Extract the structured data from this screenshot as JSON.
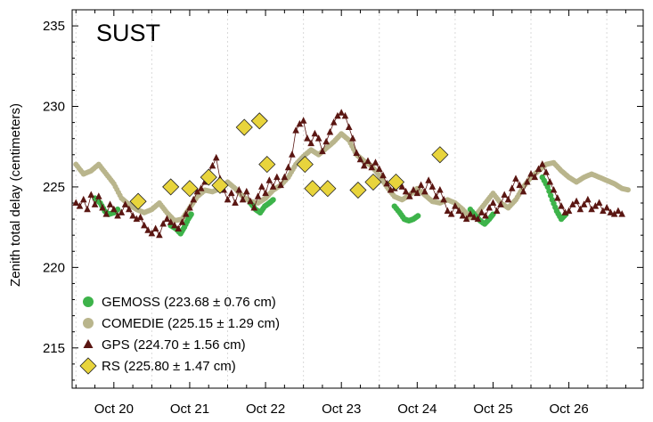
{
  "chart_data": {
    "type": "scatter",
    "station_label": "SUST",
    "ylabel": "Zenith total delay (centimeters)",
    "xlabel": "",
    "x_unit": "day",
    "ylim": [
      212.5,
      236.0
    ],
    "xlim": [
      19.45,
      26.98
    ],
    "y_ticks": [
      215,
      220,
      225,
      230,
      235
    ],
    "x_ticks": [
      {
        "x": 20,
        "label": "Oct 20"
      },
      {
        "x": 21,
        "label": "Oct 21"
      },
      {
        "x": 22,
        "label": "Oct 22"
      },
      {
        "x": 23,
        "label": "Oct 23"
      },
      {
        "x": 24,
        "label": "Oct 24"
      },
      {
        "x": 25,
        "label": "Oct 25"
      },
      {
        "x": 26,
        "label": "Oct 26"
      }
    ],
    "grid": "vertical dotted lines at day boundaries",
    "legend_position": "bottom-left",
    "series": [
      {
        "name": "GEMOSS",
        "legend": "GEMOSS (223.68 ± 0.76 cm)",
        "marker": "circle",
        "color": "#3db34a",
        "points": [
          [
            19.75,
            224.3
          ],
          [
            19.82,
            224.0
          ],
          [
            19.88,
            223.5
          ],
          [
            19.93,
            223.3
          ],
          [
            20.0,
            223.4
          ],
          [
            20.05,
            223.6
          ],
          [
            20.75,
            222.6
          ],
          [
            20.82,
            222.4
          ],
          [
            20.88,
            222.1
          ],
          [
            20.93,
            222.5
          ],
          [
            20.98,
            223.0
          ],
          [
            21.02,
            223.3
          ],
          [
            21.8,
            224.0
          ],
          [
            21.87,
            223.6
          ],
          [
            21.93,
            223.4
          ],
          [
            21.99,
            223.8
          ],
          [
            22.05,
            224.0
          ],
          [
            22.1,
            224.2
          ],
          [
            23.7,
            223.8
          ],
          [
            23.77,
            223.4
          ],
          [
            23.83,
            223.0
          ],
          [
            23.89,
            222.9
          ],
          [
            23.95,
            223.0
          ],
          [
            24.01,
            223.2
          ],
          [
            24.7,
            223.6
          ],
          [
            24.77,
            223.2
          ],
          [
            24.83,
            222.9
          ],
          [
            24.89,
            222.7
          ],
          [
            24.95,
            223.0
          ],
          [
            25.0,
            223.3
          ],
          [
            25.65,
            225.6
          ],
          [
            25.72,
            225.0
          ],
          [
            25.78,
            224.2
          ],
          [
            25.84,
            223.5
          ],
          [
            25.9,
            223.0
          ],
          [
            25.96,
            223.3
          ]
        ]
      },
      {
        "name": "COMEDIE",
        "legend": "COMEDIE (225.15 ± 1.29 cm)",
        "marker": "circle",
        "color": "#b9b58c",
        "points": [
          [
            19.5,
            226.4
          ],
          [
            19.6,
            225.8
          ],
          [
            19.7,
            226.0
          ],
          [
            19.8,
            226.4
          ],
          [
            19.9,
            225.8
          ],
          [
            20.0,
            225.2
          ],
          [
            20.1,
            224.3
          ],
          [
            20.2,
            223.9
          ],
          [
            20.3,
            223.6
          ],
          [
            20.4,
            223.4
          ],
          [
            20.5,
            223.6
          ],
          [
            20.6,
            224.0
          ],
          [
            20.7,
            223.4
          ],
          [
            20.8,
            222.9
          ],
          [
            20.9,
            223.0
          ],
          [
            21.0,
            223.7
          ],
          [
            21.1,
            224.4
          ],
          [
            21.2,
            224.8
          ],
          [
            21.3,
            224.7
          ],
          [
            21.4,
            224.9
          ],
          [
            21.5,
            225.3
          ],
          [
            21.6,
            224.9
          ],
          [
            21.7,
            224.4
          ],
          [
            21.8,
            224.1
          ],
          [
            21.9,
            224.0
          ],
          [
            22.0,
            224.3
          ],
          [
            22.1,
            224.8
          ],
          [
            22.2,
            225.1
          ],
          [
            22.3,
            225.6
          ],
          [
            22.4,
            226.4
          ],
          [
            22.5,
            226.9
          ],
          [
            22.6,
            227.3
          ],
          [
            22.7,
            227.0
          ],
          [
            22.8,
            227.4
          ],
          [
            22.9,
            227.8
          ],
          [
            23.0,
            228.3
          ],
          [
            23.1,
            227.9
          ],
          [
            23.2,
            227.0
          ],
          [
            23.3,
            226.6
          ],
          [
            23.4,
            226.3
          ],
          [
            23.5,
            225.7
          ],
          [
            23.6,
            225.0
          ],
          [
            23.7,
            224.4
          ],
          [
            23.8,
            224.2
          ],
          [
            23.9,
            224.5
          ],
          [
            24.0,
            224.9
          ],
          [
            24.1,
            224.5
          ],
          [
            24.2,
            224.1
          ],
          [
            24.3,
            224.0
          ],
          [
            24.4,
            224.2
          ],
          [
            24.5,
            224.0
          ],
          [
            24.6,
            223.6
          ],
          [
            24.7,
            223.1
          ],
          [
            24.8,
            223.4
          ],
          [
            24.9,
            224.0
          ],
          [
            25.0,
            224.6
          ],
          [
            25.1,
            224.0
          ],
          [
            25.2,
            223.7
          ],
          [
            25.3,
            224.2
          ],
          [
            25.4,
            225.0
          ],
          [
            25.5,
            225.6
          ],
          [
            25.6,
            226.0
          ],
          [
            25.7,
            226.4
          ],
          [
            25.8,
            226.5
          ],
          [
            25.9,
            226.0
          ],
          [
            26.0,
            225.6
          ],
          [
            26.1,
            225.3
          ],
          [
            26.2,
            225.6
          ],
          [
            26.3,
            225.8
          ],
          [
            26.4,
            225.6
          ],
          [
            26.5,
            225.4
          ],
          [
            26.6,
            225.2
          ],
          [
            26.7,
            224.9
          ],
          [
            26.8,
            224.8
          ]
        ]
      },
      {
        "name": "GPS",
        "legend": "GPS (224.70 ± 1.56 cm)",
        "marker": "triangle",
        "color": "#5a1612",
        "line": true,
        "points": [
          [
            19.5,
            224.0
          ],
          [
            19.55,
            223.8
          ],
          [
            19.6,
            224.2
          ],
          [
            19.65,
            223.6
          ],
          [
            19.7,
            224.5
          ],
          [
            19.75,
            223.9
          ],
          [
            19.8,
            224.4
          ],
          [
            19.85,
            223.7
          ],
          [
            19.9,
            223.3
          ],
          [
            19.95,
            223.9
          ],
          [
            20.0,
            223.6
          ],
          [
            20.05,
            223.2
          ],
          [
            20.1,
            223.4
          ],
          [
            20.15,
            223.9
          ],
          [
            20.2,
            223.6
          ],
          [
            20.25,
            223.2
          ],
          [
            20.3,
            223.0
          ],
          [
            20.35,
            223.1
          ],
          [
            20.4,
            222.6
          ],
          [
            20.45,
            222.3
          ],
          [
            20.5,
            222.1
          ],
          [
            20.55,
            222.4
          ],
          [
            20.6,
            222.0
          ],
          [
            20.65,
            222.7
          ],
          [
            20.7,
            223.0
          ],
          [
            20.75,
            222.8
          ],
          [
            20.8,
            222.6
          ],
          [
            20.85,
            222.4
          ],
          [
            20.9,
            222.8
          ],
          [
            20.95,
            223.3
          ],
          [
            21.0,
            223.7
          ],
          [
            21.05,
            224.2
          ],
          [
            21.1,
            224.7
          ],
          [
            21.15,
            224.9
          ],
          [
            21.2,
            225.3
          ],
          [
            21.25,
            225.9
          ],
          [
            21.3,
            226.3
          ],
          [
            21.35,
            226.8
          ],
          [
            21.4,
            225.5
          ],
          [
            21.45,
            224.8
          ],
          [
            21.5,
            224.2
          ],
          [
            21.55,
            224.6
          ],
          [
            21.6,
            224.0
          ],
          [
            21.65,
            224.8
          ],
          [
            21.7,
            224.2
          ],
          [
            21.75,
            224.7
          ],
          [
            21.8,
            224.1
          ],
          [
            21.85,
            223.7
          ],
          [
            21.9,
            224.4
          ],
          [
            21.95,
            225.0
          ],
          [
            22.0,
            224.6
          ],
          [
            22.05,
            225.4
          ],
          [
            22.1,
            225.0
          ],
          [
            22.15,
            225.6
          ],
          [
            22.2,
            225.1
          ],
          [
            22.25,
            225.6
          ],
          [
            22.3,
            226.2
          ],
          [
            22.35,
            227.0
          ],
          [
            22.4,
            228.5
          ],
          [
            22.45,
            228.9
          ],
          [
            22.5,
            229.1
          ],
          [
            22.55,
            228.0
          ],
          [
            22.6,
            227.7
          ],
          [
            22.65,
            228.3
          ],
          [
            22.7,
            228.0
          ],
          [
            22.75,
            227.2
          ],
          [
            22.8,
            227.8
          ],
          [
            22.85,
            228.4
          ],
          [
            22.9,
            229.0
          ],
          [
            22.95,
            229.4
          ],
          [
            23.0,
            229.6
          ],
          [
            23.05,
            229.4
          ],
          [
            23.1,
            228.7
          ],
          [
            23.15,
            228.0
          ],
          [
            23.2,
            227.1
          ],
          [
            23.25,
            226.7
          ],
          [
            23.3,
            226.3
          ],
          [
            23.35,
            226.6
          ],
          [
            23.4,
            226.2
          ],
          [
            23.45,
            226.5
          ],
          [
            23.5,
            226.1
          ],
          [
            23.55,
            225.7
          ],
          [
            23.6,
            225.2
          ],
          [
            23.65,
            224.8
          ],
          [
            23.7,
            224.9
          ],
          [
            23.75,
            225.2
          ],
          [
            23.8,
            225.0
          ],
          [
            23.85,
            224.7
          ],
          [
            23.9,
            224.4
          ],
          [
            23.95,
            224.8
          ],
          [
            24.0,
            224.6
          ],
          [
            24.05,
            225.1
          ],
          [
            24.1,
            224.7
          ],
          [
            24.15,
            225.4
          ],
          [
            24.2,
            225.0
          ],
          [
            24.25,
            224.4
          ],
          [
            24.3,
            224.8
          ],
          [
            24.35,
            224.2
          ],
          [
            24.4,
            223.5
          ],
          [
            24.45,
            223.3
          ],
          [
            24.5,
            223.8
          ],
          [
            24.55,
            223.5
          ],
          [
            24.6,
            223.2
          ],
          [
            24.65,
            223.0
          ],
          [
            24.7,
            223.3
          ],
          [
            24.75,
            223.1
          ],
          [
            24.8,
            223.0
          ],
          [
            24.85,
            223.4
          ],
          [
            24.9,
            223.2
          ],
          [
            24.95,
            223.7
          ],
          [
            25.0,
            224.0
          ],
          [
            25.05,
            223.5
          ],
          [
            25.1,
            223.9
          ],
          [
            25.15,
            224.5
          ],
          [
            25.2,
            224.2
          ],
          [
            25.25,
            224.9
          ],
          [
            25.3,
            225.5
          ],
          [
            25.35,
            225.1
          ],
          [
            25.4,
            224.7
          ],
          [
            25.45,
            225.3
          ],
          [
            25.5,
            225.8
          ],
          [
            25.55,
            225.6
          ],
          [
            25.6,
            226.1
          ],
          [
            25.65,
            226.4
          ],
          [
            25.7,
            225.9
          ],
          [
            25.75,
            225.3
          ],
          [
            25.8,
            224.8
          ],
          [
            25.85,
            224.3
          ],
          [
            25.9,
            223.8
          ],
          [
            25.95,
            223.4
          ],
          [
            26.0,
            223.5
          ],
          [
            26.05,
            223.9
          ],
          [
            26.1,
            224.1
          ],
          [
            26.15,
            223.6
          ],
          [
            26.2,
            223.9
          ],
          [
            26.25,
            224.2
          ],
          [
            26.3,
            223.6
          ],
          [
            26.35,
            223.8
          ],
          [
            26.4,
            224.0
          ],
          [
            26.45,
            223.5
          ],
          [
            26.5,
            223.7
          ],
          [
            26.55,
            223.4
          ],
          [
            26.6,
            223.3
          ],
          [
            26.65,
            223.5
          ],
          [
            26.7,
            223.3
          ]
        ]
      },
      {
        "name": "RS",
        "legend": "RS (225.80 ± 1.47 cm)",
        "marker": "diamond",
        "color": "#e8d43c",
        "points": [
          [
            20.32,
            224.1
          ],
          [
            20.75,
            225.0
          ],
          [
            21.0,
            224.9
          ],
          [
            21.25,
            225.6
          ],
          [
            21.4,
            225.1
          ],
          [
            21.72,
            228.7
          ],
          [
            21.92,
            229.1
          ],
          [
            22.02,
            226.4
          ],
          [
            22.52,
            226.4
          ],
          [
            22.62,
            224.9
          ],
          [
            22.82,
            224.9
          ],
          [
            23.22,
            224.8
          ],
          [
            23.42,
            225.3
          ],
          [
            23.72,
            225.3
          ],
          [
            24.3,
            227.0
          ]
        ]
      }
    ]
  }
}
